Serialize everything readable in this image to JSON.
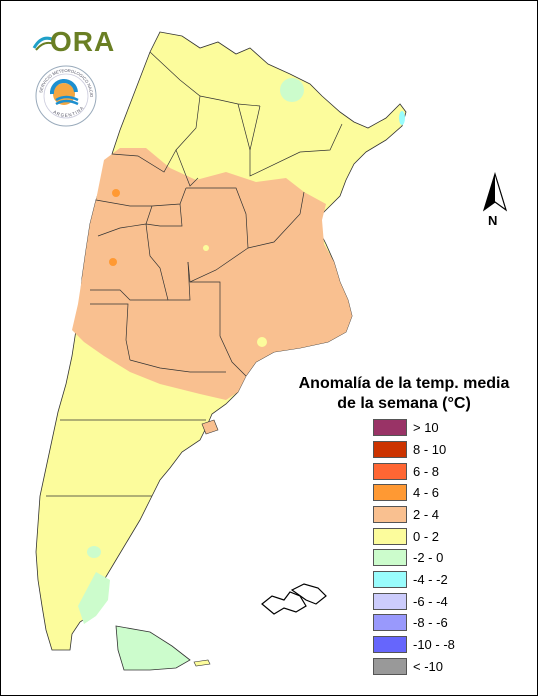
{
  "logos": {
    "ora_text": "ORA",
    "smn_ring_text": "SERVICIO METEOROLOGICO NACIONAL",
    "smn_bottom_text": "ARGENTINA"
  },
  "north_arrow": {
    "label": "N"
  },
  "legend": {
    "title_line1": "Anomalía de la temp. media",
    "title_line2": "de la semana (°C)",
    "items": [
      {
        "label": "> 10",
        "color": "#993366"
      },
      {
        "label": "8 - 10",
        "color": "#cc3300"
      },
      {
        "label": "6 - 8",
        "color": "#ff6633"
      },
      {
        "label": "4 - 6",
        "color": "#ff9933"
      },
      {
        "label": "2 - 4",
        "color": "#f9c090"
      },
      {
        "label": "0 - 2",
        "color": "#fcfc9c"
      },
      {
        "label": "-2 - 0",
        "color": "#ccfccc"
      },
      {
        "label": "-4 - -2",
        "color": "#99fcfc"
      },
      {
        "label": "-6 - -4",
        "color": "#ccccfc"
      },
      {
        "label": "-8 - -6",
        "color": "#9999fc"
      },
      {
        "label": "-10 - -8",
        "color": "#6666fc"
      },
      {
        "label": "< -10",
        "color": "#999999"
      }
    ]
  }
}
